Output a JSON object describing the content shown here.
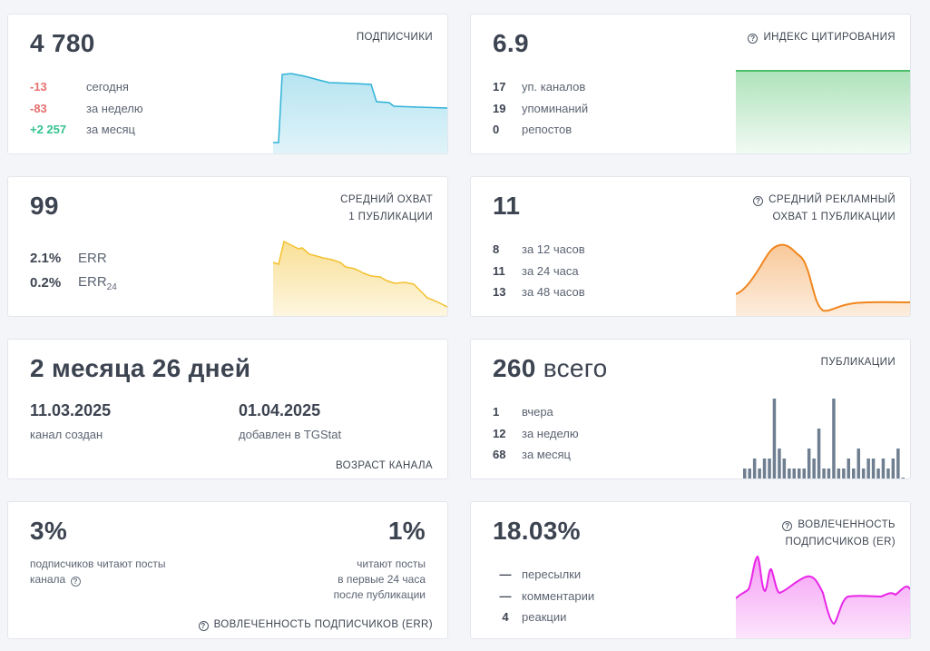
{
  "subscribers": {
    "value": "4 780",
    "title": "ПОДПИСЧИКИ",
    "stats": [
      {
        "value": "-13",
        "label": "сегодня",
        "trend": "neg"
      },
      {
        "value": "-83",
        "label": "за неделю",
        "trend": "neg"
      },
      {
        "value": "+2 257",
        "label": "за месяц",
        "trend": "pos"
      }
    ],
    "color": "#2fb2d7"
  },
  "citation": {
    "value": "6.9",
    "title": "ИНДЕКС ЦИТИРОВАНИЯ",
    "icon": "info-icon",
    "stats": [
      {
        "value": "17",
        "label": "уп. каналов"
      },
      {
        "value": "19",
        "label": "упоминаний"
      },
      {
        "value": "0",
        "label": "репостов"
      }
    ],
    "color": "#4cc068"
  },
  "reach": {
    "value": "99",
    "title_lines": [
      "СРЕДНИЙ ОХВАТ",
      "1 ПУБЛИКАЦИИ"
    ],
    "err": {
      "value": "2.1%",
      "label": "ERR"
    },
    "err24": {
      "value": "0.2%",
      "label": "ERR",
      "sub": "24"
    },
    "color": "#f3c12e"
  },
  "ad_reach": {
    "value": "11",
    "title_lines": [
      "СРЕДНИЙ РЕКЛАМНЫЙ",
      "ОХВАТ 1 ПУБЛИКАЦИИ"
    ],
    "icon": "info-icon",
    "stats": [
      {
        "value": "8",
        "label": "за 12 часов"
      },
      {
        "value": "11",
        "label": "за 24 часа"
      },
      {
        "value": "13",
        "label": "за 48 часов"
      }
    ],
    "color": "#f0861e"
  },
  "age": {
    "value": "2 месяца 26 дней",
    "created": {
      "date": "11.03.2025",
      "label": "канал создан"
    },
    "added": {
      "date": "01.04.2025",
      "label": "добавлен в TGStat"
    },
    "footer": "ВОЗРАСТ КАНАЛА"
  },
  "posts": {
    "value": "260",
    "suffix": " всего",
    "title": "ПУБЛИКАЦИИ",
    "stats": [
      {
        "value": "1",
        "label": "вчера"
      },
      {
        "value": "12",
        "label": "за неделю"
      },
      {
        "value": "68",
        "label": "за месяц"
      }
    ],
    "color": "#6f7f91",
    "daily_counts": [
      1,
      1,
      2,
      1,
      2,
      2,
      8,
      3,
      2,
      1,
      1,
      1,
      1,
      3,
      2,
      5,
      1,
      1,
      8,
      1,
      1,
      2,
      1,
      3,
      1,
      2,
      2,
      1,
      2,
      1,
      2,
      3,
      0
    ]
  },
  "read_rate": {
    "left_value": "3%",
    "left_desc_lines": [
      "подписчиков читают посты",
      "канала"
    ],
    "right_value": "1%",
    "right_desc_lines": [
      "читают посты",
      "в первые 24 часа",
      "после публикации"
    ],
    "footer": "ВОВЛЕЧЕННОСТЬ ПОДПИСЧИКОВ (ERR)",
    "icon": "info-icon"
  },
  "engagement": {
    "value": "18.03%",
    "title_lines": [
      "ВОВЛЕЧЕННОСТЬ",
      "ПОДПИСЧИКОВ (ER)"
    ],
    "icon": "info-icon",
    "stats": [
      {
        "value": "—",
        "label": "пересылки"
      },
      {
        "value": "—",
        "label": "комментарии"
      },
      {
        "value": "4",
        "label": "реакции"
      }
    ],
    "color": "#e826e8"
  }
}
